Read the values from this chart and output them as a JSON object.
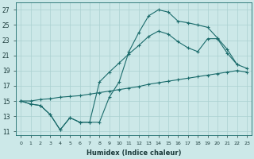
{
  "xlabel": "Humidex (Indice chaleur)",
  "background_color": "#cce8e8",
  "grid_color": "#aad0d0",
  "line_color": "#1a6b6b",
  "xlim": [
    -0.5,
    23.5
  ],
  "ylim": [
    10.5,
    28.0
  ],
  "x_ticks": [
    0,
    1,
    2,
    3,
    4,
    5,
    6,
    7,
    8,
    9,
    10,
    11,
    12,
    13,
    14,
    15,
    16,
    17,
    18,
    19,
    20,
    21,
    22,
    23
  ],
  "y_ticks": [
    11,
    13,
    15,
    17,
    19,
    21,
    23,
    25,
    27
  ],
  "line_upper_x": [
    0,
    1,
    2,
    3,
    4,
    5,
    6,
    7,
    8,
    9,
    10,
    11,
    12,
    13,
    14,
    15,
    16,
    17,
    18,
    19,
    20,
    21,
    22
  ],
  "line_upper_y": [
    15.0,
    14.6,
    14.4,
    13.2,
    11.2,
    12.8,
    12.2,
    12.2,
    12.2,
    15.5,
    17.5,
    21.5,
    24.0,
    26.2,
    27.0,
    26.7,
    25.5,
    25.3,
    25.0,
    24.7,
    23.3,
    21.8,
    19.8
  ],
  "line_mid_x": [
    0,
    1,
    2,
    3,
    4,
    5,
    6,
    7,
    8,
    9,
    10,
    11,
    12,
    13,
    14,
    15,
    16,
    17,
    18,
    19,
    20,
    21,
    22,
    23
  ],
  "line_mid_y": [
    15.0,
    14.6,
    14.4,
    13.2,
    11.2,
    12.8,
    12.2,
    12.2,
    17.5,
    18.8,
    20.0,
    21.2,
    22.3,
    23.5,
    24.2,
    23.8,
    22.8,
    22.0,
    21.5,
    23.2,
    23.2,
    21.3,
    19.8,
    19.3
  ],
  "line_low_x": [
    0,
    1,
    2,
    3,
    4,
    5,
    6,
    7,
    8,
    9,
    10,
    11,
    12,
    13,
    14,
    15,
    16,
    17,
    18,
    19,
    20,
    21,
    22,
    23
  ],
  "line_low_y": [
    15.0,
    15.0,
    15.2,
    15.3,
    15.5,
    15.6,
    15.7,
    15.9,
    16.1,
    16.3,
    16.5,
    16.7,
    16.9,
    17.2,
    17.4,
    17.6,
    17.8,
    18.0,
    18.2,
    18.4,
    18.6,
    18.8,
    19.0,
    18.8
  ]
}
